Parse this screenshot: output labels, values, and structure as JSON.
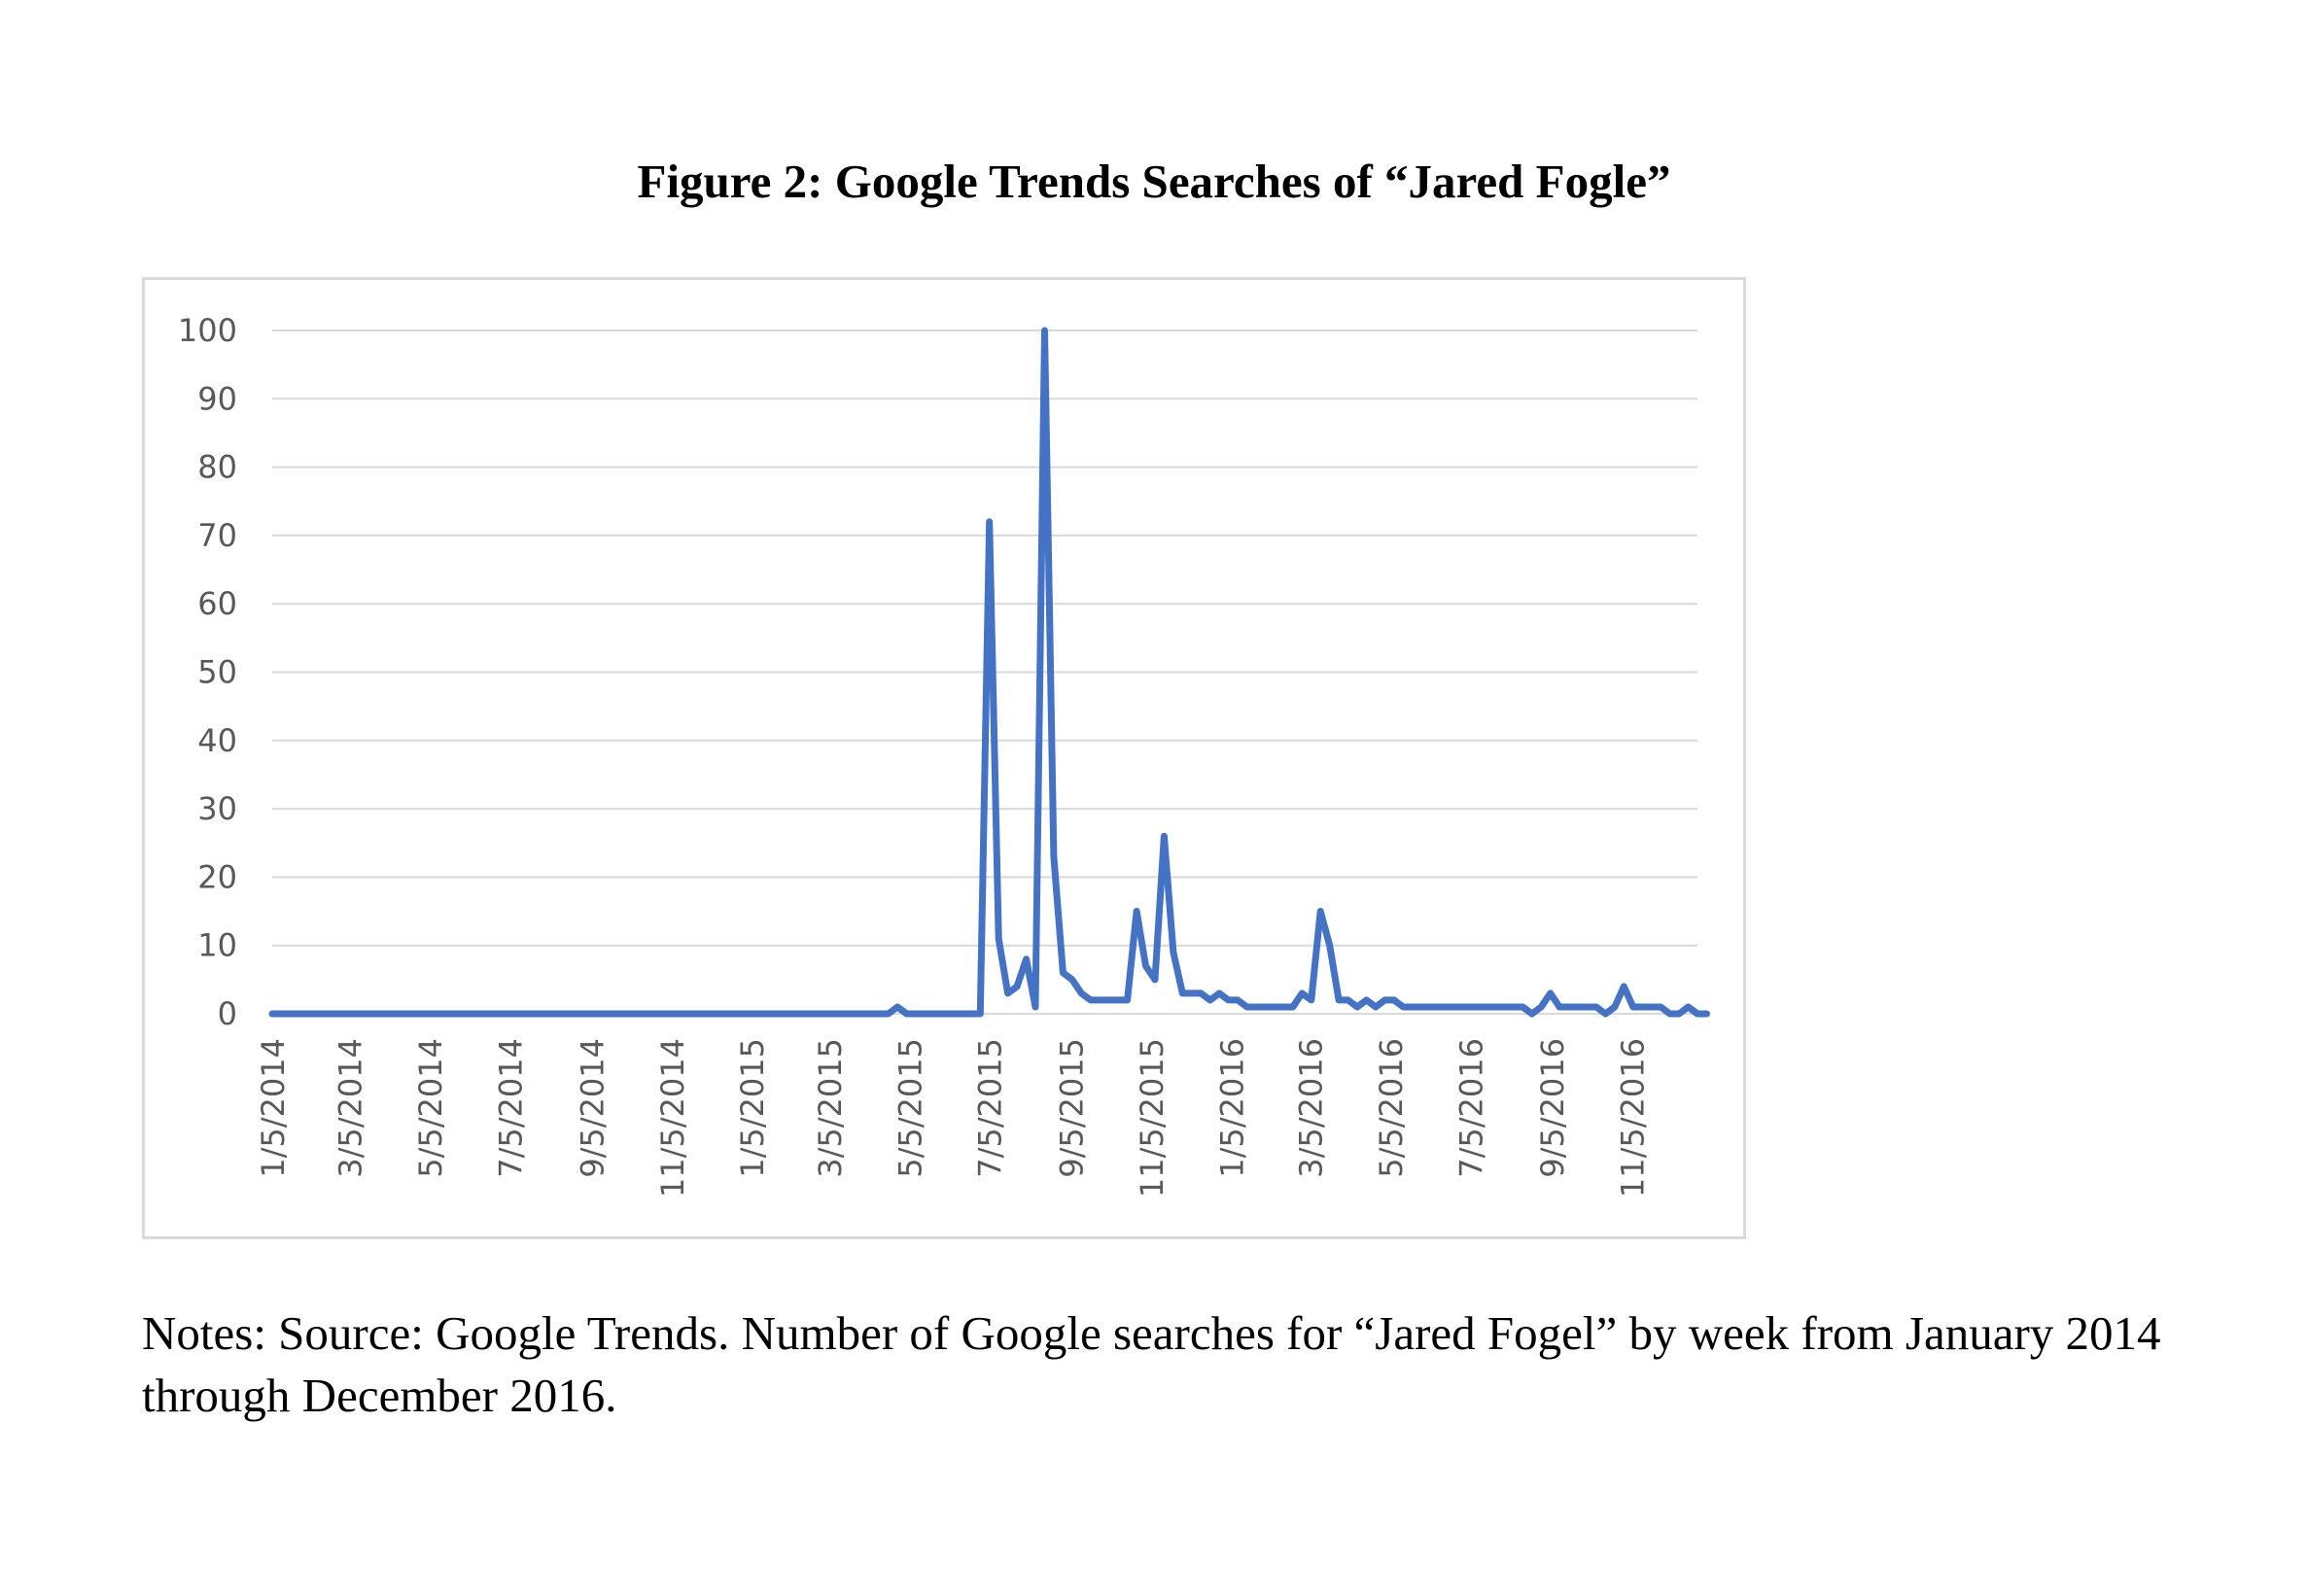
{
  "figure": {
    "title": "Figure 2: Google Trends Searches of “Jared Fogle”",
    "notes": "Notes: Source: Google Trends. Number of Google searches for “Jared Fogel” by week from January 2014 through December 2016."
  },
  "chart_data": {
    "type": "line",
    "title": "",
    "xlabel": "",
    "ylabel": "",
    "ylim": [
      0,
      100
    ],
    "yticks": [
      0,
      10,
      20,
      30,
      40,
      50,
      60,
      70,
      80,
      90,
      100
    ],
    "xlim": [
      "2014-01-05",
      "2016-12-25"
    ],
    "xticks": [
      "1/5/2014",
      "3/5/2014",
      "5/5/2014",
      "7/5/2014",
      "9/5/2014",
      "11/5/2014",
      "1/5/2015",
      "3/5/2015",
      "5/5/2015",
      "7/5/2015",
      "9/5/2015",
      "11/5/2015",
      "1/5/2016",
      "3/5/2016",
      "5/5/2016",
      "7/5/2016",
      "9/5/2016",
      "11/5/2016"
    ],
    "grid": true,
    "legend": "none",
    "color": "#4472C4",
    "series": [
      {
        "points": [
          [
            "2014-01-05",
            0
          ],
          [
            "2015-04-19",
            0
          ],
          [
            "2015-04-26",
            1
          ],
          [
            "2015-05-03",
            0
          ],
          [
            "2015-06-28",
            0
          ],
          [
            "2015-07-05",
            72
          ],
          [
            "2015-07-12",
            11
          ],
          [
            "2015-07-19",
            3
          ],
          [
            "2015-07-26",
            4
          ],
          [
            "2015-08-02",
            8
          ],
          [
            "2015-08-09",
            1
          ],
          [
            "2015-08-16",
            100
          ],
          [
            "2015-08-23",
            23
          ],
          [
            "2015-08-30",
            6
          ],
          [
            "2015-09-06",
            5
          ],
          [
            "2015-09-13",
            3
          ],
          [
            "2015-09-20",
            2
          ],
          [
            "2015-10-18",
            2
          ],
          [
            "2015-10-25",
            15
          ],
          [
            "2015-11-01",
            7
          ],
          [
            "2015-11-08",
            5
          ],
          [
            "2015-11-15",
            26
          ],
          [
            "2015-11-22",
            9
          ],
          [
            "2015-11-29",
            3
          ],
          [
            "2015-12-13",
            3
          ],
          [
            "2015-12-20",
            2
          ],
          [
            "2015-12-27",
            3
          ],
          [
            "2016-01-03",
            2
          ],
          [
            "2016-01-10",
            2
          ],
          [
            "2016-01-17",
            1
          ],
          [
            "2016-02-21",
            1
          ],
          [
            "2016-02-28",
            3
          ],
          [
            "2016-03-06",
            2
          ],
          [
            "2016-03-13",
            15
          ],
          [
            "2016-03-20",
            10
          ],
          [
            "2016-03-27",
            2
          ],
          [
            "2016-04-03",
            2
          ],
          [
            "2016-04-10",
            1
          ],
          [
            "2016-04-17",
            2
          ],
          [
            "2016-04-24",
            1
          ],
          [
            "2016-05-01",
            2
          ],
          [
            "2016-05-08",
            2
          ],
          [
            "2016-05-15",
            1
          ],
          [
            "2016-08-14",
            1
          ],
          [
            "2016-08-21",
            0
          ],
          [
            "2016-08-28",
            1
          ],
          [
            "2016-09-04",
            3
          ],
          [
            "2016-09-11",
            1
          ],
          [
            "2016-10-09",
            1
          ],
          [
            "2016-10-16",
            0
          ],
          [
            "2016-10-23",
            1
          ],
          [
            "2016-10-30",
            4
          ],
          [
            "2016-11-06",
            1
          ],
          [
            "2016-11-27",
            1
          ],
          [
            "2016-12-04",
            0
          ],
          [
            "2016-12-11",
            0
          ],
          [
            "2016-12-18",
            1
          ],
          [
            "2016-12-25",
            0
          ],
          [
            "2017-01-01",
            0
          ]
        ]
      }
    ]
  }
}
